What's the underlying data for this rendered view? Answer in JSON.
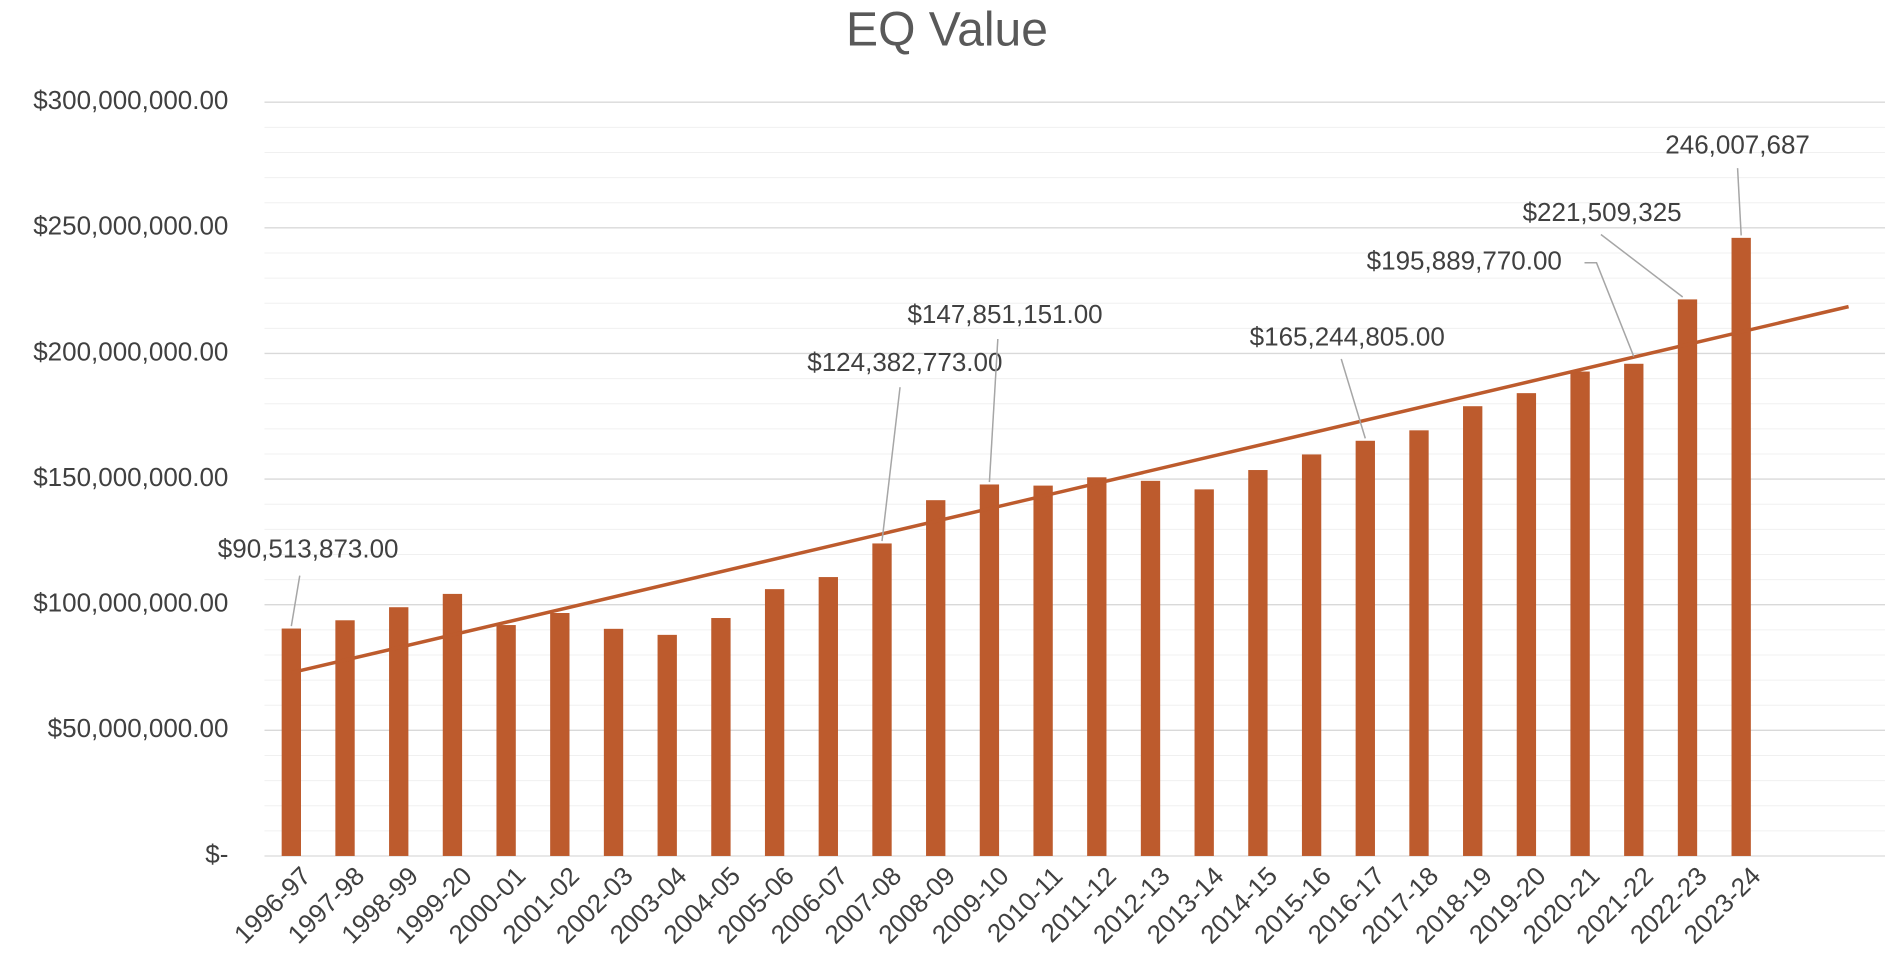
{
  "chart_data": {
    "type": "bar",
    "title": "EQ Value",
    "categories": [
      "1996-97",
      "1997-98",
      "1998-99",
      "1999-20",
      "2000-01",
      "2001-02",
      "2002-03",
      "2003-04",
      "2004-05",
      "2005-06",
      "2006-07",
      "2007-08",
      "2008-09",
      "2009-10",
      "2010-11",
      "2011-12",
      "2012-13",
      "2013-14",
      "2014-15",
      "2015-16",
      "2016-17",
      "2017-18",
      "2018-19",
      "2019-20",
      "2020-21",
      "2021-22",
      "2022-23",
      "2023-24"
    ],
    "values": [
      90513873,
      93800000,
      99000000,
      104300000,
      91900000,
      96700000,
      90400000,
      88000000,
      94700000,
      106200000,
      111000000,
      124382773,
      141600000,
      147851151,
      147400000,
      150700000,
      149300000,
      145900000,
      153600000,
      159800000,
      165244805,
      169400000,
      179000000,
      184200000,
      192800000,
      195889770,
      221509325,
      246007687
    ],
    "value_labels": [
      "$90,513,873.00",
      null,
      null,
      null,
      null,
      null,
      null,
      null,
      null,
      null,
      null,
      "$124,382,773.00",
      null,
      "$147,851,151.00",
      null,
      null,
      null,
      null,
      null,
      null,
      "$165,244,805.00",
      null,
      null,
      null,
      null,
      "$195,889,770.00",
      "$221,509,325",
      "246,007,687"
    ],
    "color": "#bd5b2d",
    "trendline": {
      "type": "linear",
      "forward": 2,
      "color": "#bd5b2d"
    },
    "ylim": [
      0,
      300000000
    ],
    "yticks": [
      {
        "value": 0,
        "label": "$-"
      },
      {
        "value": 50000000,
        "label": "$50,000,000.00"
      },
      {
        "value": 100000000,
        "label": "$100,000,000.00"
      },
      {
        "value": 150000000,
        "label": "$150,000,000.00"
      },
      {
        "value": 200000000,
        "label": "$200,000,000.00"
      },
      {
        "value": 250000000,
        "label": "$250,000,000.00"
      },
      {
        "value": 300000000,
        "label": "$300,000,000.00"
      }
    ],
    "grid": true,
    "minor_grid": true
  }
}
